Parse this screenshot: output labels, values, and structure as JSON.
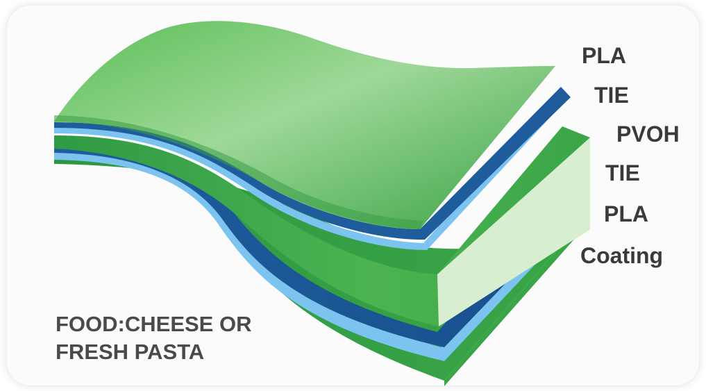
{
  "layers": [
    {
      "label": "PLA"
    },
    {
      "label": "TIE"
    },
    {
      "label": "PVOH"
    },
    {
      "label": "TIE"
    },
    {
      "label": "PLA"
    },
    {
      "label": "Coating"
    }
  ],
  "food": {
    "line1": "FOOD:CHEESE OR",
    "line2": "FRESH PASTA"
  },
  "colors": {
    "pla_green": "#3ea84a",
    "pla_green_light": "#8fd48c",
    "tie_blue": "#1f5fa0",
    "tie_blue_light": "#6fb4ea",
    "pvoh_green": "#2f9a48",
    "pvoh_edge": "#d9f0d2",
    "coating_green": "#33a243"
  }
}
